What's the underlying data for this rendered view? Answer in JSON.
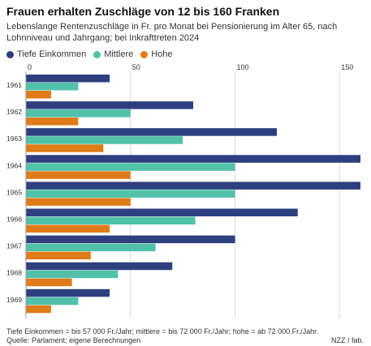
{
  "chart_data": {
    "type": "bar",
    "orientation": "horizontal",
    "title": "Frauen erhalten Zuschläge von 12 bis 160 Franken",
    "subtitle": "Lebenslange Rentenzuschläge in Fr. pro Monat bei Pensionierung im Alter 65, nach Lohnniveau und Jahrgang; bei Inkrafttreten 2024",
    "categories": [
      "1961",
      "1962",
      "1963",
      "1964",
      "1965",
      "1966",
      "1967",
      "1968",
      "1969"
    ],
    "series": [
      {
        "name": "Tiefe Einkommen",
        "color": "#2e3f7f",
        "values": [
          40,
          80,
          120,
          160,
          160,
          130,
          100,
          70,
          40
        ]
      },
      {
        "name": "Mittlere",
        "color": "#52c1aa",
        "values": [
          25,
          50,
          75,
          100,
          100,
          81,
          62,
          44,
          25
        ]
      },
      {
        "name": "Hohe",
        "color": "#e07b1a",
        "values": [
          12,
          25,
          37,
          50,
          50,
          40,
          31,
          22,
          12
        ]
      }
    ],
    "xlim": [
      0,
      160
    ],
    "xticks": [
      0,
      50,
      100,
      150
    ],
    "xtick_labels": [
      "0",
      "50",
      "100",
      "150"
    ],
    "grid": true,
    "legend_position": "top-left"
  },
  "footer": {
    "note": "Tiefe Einkommen = bis 57 000 Fr./Jahr; mittlere = bis 72 000 Fr./Jahr; hohe = ab 72 000 Fr./Jahr.",
    "source": "Quelle: Parlament; eigene Berechnungen",
    "credit": "NZZ / fab."
  }
}
